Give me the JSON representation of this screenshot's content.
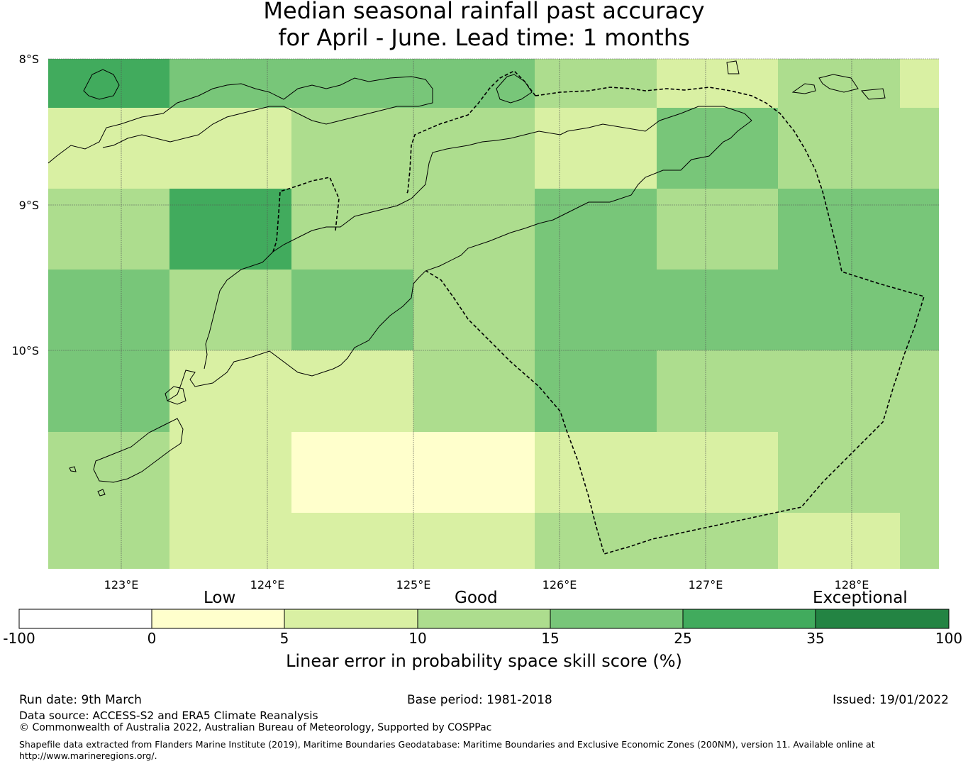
{
  "title": {
    "line1": "Median seasonal rainfall past accuracy",
    "line2": "for April - June. Lead time: 1 months"
  },
  "map": {
    "lon_range": [
      122.5,
      128.6
    ],
    "lat_range": [
      -11.5,
      -8.0
    ],
    "lon_ticks": [
      "123°E",
      "124°E",
      "125°E",
      "126°E",
      "127°E",
      "128°E"
    ],
    "lat_ticks": [
      "8°S",
      "9°S",
      "10°S"
    ],
    "grid": true,
    "cell_size_deg": [
      0.8333,
      0.5556
    ],
    "skill_grid_bin_index": [
      [
        5,
        4,
        4,
        4,
        3,
        2,
        3,
        2
      ],
      [
        2,
        2,
        3,
        3,
        2,
        4,
        3,
        3
      ],
      [
        3,
        5,
        3,
        3,
        4,
        3,
        4,
        4
      ],
      [
        4,
        3,
        4,
        3,
        4,
        4,
        4,
        4
      ],
      [
        4,
        2,
        2,
        3,
        4,
        3,
        3,
        3
      ],
      [
        3,
        2,
        1,
        1,
        2,
        2,
        3,
        3
      ],
      [
        3,
        2,
        2,
        2,
        3,
        3,
        2,
        3
      ]
    ],
    "eez_boundary_style": "dashed",
    "coastline_color": "#000000"
  },
  "colorbar": {
    "bounds": [
      "-100",
      "0",
      "5",
      "10",
      "15",
      "25",
      "35",
      "100"
    ],
    "colors": [
      "#ffffff",
      "#ffffcc",
      "#d9f0a3",
      "#addd8e",
      "#78c679",
      "#41ab5d",
      "#238443"
    ],
    "categories": [
      "Low",
      "Good",
      "Exceptional"
    ],
    "label": "Linear error in probability space skill score (%)"
  },
  "footer": {
    "run_date": "Run date: 9th March",
    "base_period": "Base period: 1981-2018",
    "issued": "Issued: 19/01/2022",
    "data_source": "Data source: ACCESS-S2 and ERA5 Climate Reanalysis",
    "copyright": "© Commonwealth of Australia 2022, Australian Bureau of Meteorology, Supported by COSPPac",
    "shapefile_line1": "Shapefile data extracted from Flanders Marine Institute (2019), Maritime Boundaries Geodatabase: Maritime Boundaries and Exclusive Economic Zones (200NM), version 11. Available online at",
    "shapefile_line2": "http://www.marineregions.org/."
  }
}
